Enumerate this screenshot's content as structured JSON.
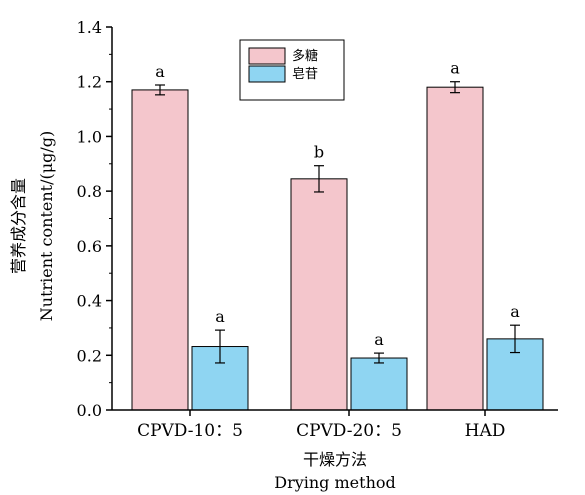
{
  "chart_data": {
    "type": "bar",
    "categories": [
      "CPVD-10：5",
      "CPVD-20：5",
      "HAD"
    ],
    "series": [
      {
        "name": "多糖",
        "color": "#f4c6cc",
        "values": [
          1.17,
          0.845,
          1.18
        ],
        "errors": [
          0.018,
          0.048,
          0.02
        ],
        "labels": [
          "a",
          "b",
          "a"
        ]
      },
      {
        "name": "皂苷",
        "color": "#8fd5f2",
        "values": [
          0.232,
          0.19,
          0.26
        ],
        "errors": [
          0.06,
          0.018,
          0.05
        ],
        "labels": [
          "a",
          "a",
          "a"
        ]
      }
    ],
    "ylim": [
      0,
      1.4
    ],
    "yticks": [
      "0.0",
      "0.2",
      "0.4",
      "0.6",
      "0.8",
      "1.0",
      "1.2",
      "1.4"
    ],
    "xlabel_cn": "干燥方法",
    "xlabel_en": "Drying method",
    "ylabel_cn": "营养成分含量",
    "ylabel_en": "Nutrient content/(μg/g)",
    "legend_position": "top-center",
    "grid": false
  }
}
